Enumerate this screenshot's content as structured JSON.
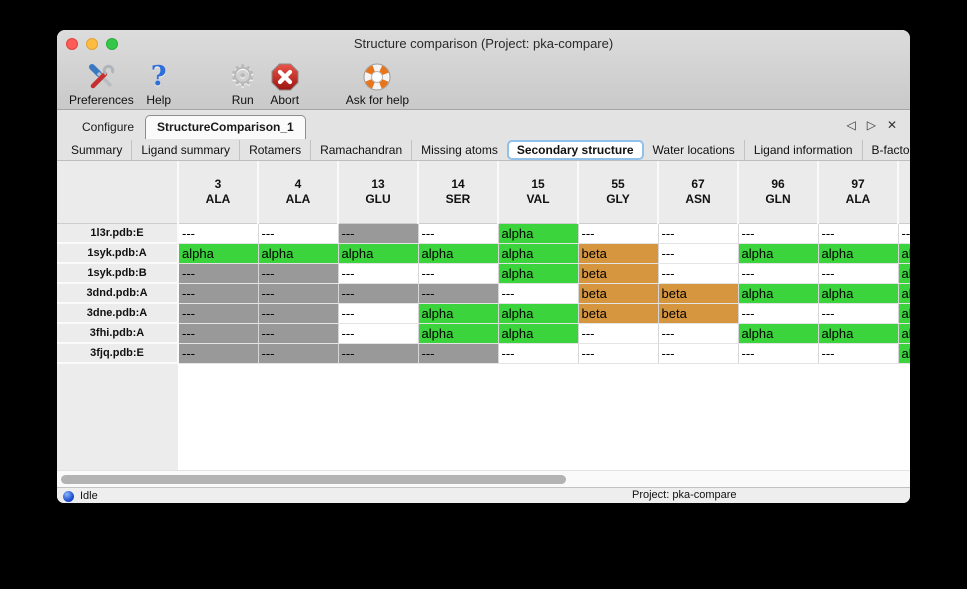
{
  "window": {
    "title": "Structure comparison (Project: pka-compare)"
  },
  "toolbar": {
    "buttons": [
      {
        "label": "Preferences",
        "icon": "tools-icon"
      },
      {
        "label": "Help",
        "icon": "question-mark-icon"
      },
      {
        "label": "Run",
        "icon": "gear-icon"
      },
      {
        "label": "Abort",
        "icon": "stop-x-icon"
      },
      {
        "label": "Ask for help",
        "icon": "lifebuoy-icon"
      }
    ]
  },
  "main_tabs": {
    "tabs": [
      {
        "label": "Configure",
        "selected": false
      },
      {
        "label": "StructureComparison_1",
        "selected": true
      }
    ],
    "nav": {
      "back": "◁",
      "forward": "▷",
      "close": "✕"
    }
  },
  "sub_tabs": {
    "tabs": [
      {
        "label": "Summary",
        "selected": false
      },
      {
        "label": "Ligand summary",
        "selected": false
      },
      {
        "label": "Rotamers",
        "selected": false
      },
      {
        "label": "Ramachandran",
        "selected": false
      },
      {
        "label": "Missing atoms",
        "selected": false
      },
      {
        "label": "Secondary structure",
        "selected": true
      },
      {
        "label": "Water locations",
        "selected": false
      },
      {
        "label": "Ligand information",
        "selected": false
      },
      {
        "label": "B-factors",
        "selected": false
      }
    ],
    "nav": {
      "back": "◁",
      "forward": "▷"
    }
  },
  "colors": {
    "green": "#3cd43c",
    "orange": "#d6963f",
    "gray": "#999999",
    "white": "#ffffff"
  },
  "table": {
    "columns": [
      {
        "number": "3",
        "residue": "ALA"
      },
      {
        "number": "4",
        "residue": "ALA"
      },
      {
        "number": "13",
        "residue": "GLU"
      },
      {
        "number": "14",
        "residue": "SER"
      },
      {
        "number": "15",
        "residue": "VAL"
      },
      {
        "number": "55",
        "residue": "GLY"
      },
      {
        "number": "67",
        "residue": "ASN"
      },
      {
        "number": "96",
        "residue": "GLN"
      },
      {
        "number": "97",
        "residue": "ALA"
      },
      {
        "number": "",
        "residue": ""
      }
    ],
    "rows": [
      {
        "label": "1l3r.pdb:E",
        "cells": [
          {
            "text": "---",
            "bg": "white"
          },
          {
            "text": "---",
            "bg": "white"
          },
          {
            "text": "---",
            "bg": "gray"
          },
          {
            "text": "---",
            "bg": "white"
          },
          {
            "text": "alpha",
            "bg": "green"
          },
          {
            "text": "---",
            "bg": "white"
          },
          {
            "text": "---",
            "bg": "white"
          },
          {
            "text": "---",
            "bg": "white"
          },
          {
            "text": "---",
            "bg": "white"
          },
          {
            "text": "---",
            "bg": "white"
          }
        ]
      },
      {
        "label": "1syk.pdb:A",
        "cells": [
          {
            "text": "alpha",
            "bg": "green"
          },
          {
            "text": "alpha",
            "bg": "green"
          },
          {
            "text": "alpha",
            "bg": "green"
          },
          {
            "text": "alpha",
            "bg": "green"
          },
          {
            "text": "alpha",
            "bg": "green"
          },
          {
            "text": "beta",
            "bg": "orange"
          },
          {
            "text": "---",
            "bg": "white"
          },
          {
            "text": "alpha",
            "bg": "green"
          },
          {
            "text": "alpha",
            "bg": "green"
          },
          {
            "text": "alpha",
            "bg": "green"
          }
        ]
      },
      {
        "label": "1syk.pdb:B",
        "cells": [
          {
            "text": "---",
            "bg": "gray"
          },
          {
            "text": "---",
            "bg": "gray"
          },
          {
            "text": "---",
            "bg": "white"
          },
          {
            "text": "---",
            "bg": "white"
          },
          {
            "text": "alpha",
            "bg": "green"
          },
          {
            "text": "beta",
            "bg": "orange"
          },
          {
            "text": "---",
            "bg": "white"
          },
          {
            "text": "---",
            "bg": "white"
          },
          {
            "text": "---",
            "bg": "white"
          },
          {
            "text": "alpha",
            "bg": "green"
          }
        ]
      },
      {
        "label": "3dnd.pdb:A",
        "cells": [
          {
            "text": "---",
            "bg": "gray"
          },
          {
            "text": "---",
            "bg": "gray"
          },
          {
            "text": "---",
            "bg": "gray"
          },
          {
            "text": "---",
            "bg": "gray"
          },
          {
            "text": "---",
            "bg": "white"
          },
          {
            "text": "beta",
            "bg": "orange"
          },
          {
            "text": "beta",
            "bg": "orange"
          },
          {
            "text": "alpha",
            "bg": "green"
          },
          {
            "text": "alpha",
            "bg": "green"
          },
          {
            "text": "alpha",
            "bg": "green"
          }
        ]
      },
      {
        "label": "3dne.pdb:A",
        "cells": [
          {
            "text": "---",
            "bg": "gray"
          },
          {
            "text": "---",
            "bg": "gray"
          },
          {
            "text": "---",
            "bg": "white"
          },
          {
            "text": "alpha",
            "bg": "green"
          },
          {
            "text": "alpha",
            "bg": "green"
          },
          {
            "text": "beta",
            "bg": "orange"
          },
          {
            "text": "beta",
            "bg": "orange"
          },
          {
            "text": "---",
            "bg": "white"
          },
          {
            "text": "---",
            "bg": "white"
          },
          {
            "text": "alpha",
            "bg": "green"
          }
        ]
      },
      {
        "label": "3fhi.pdb:A",
        "cells": [
          {
            "text": "---",
            "bg": "gray"
          },
          {
            "text": "---",
            "bg": "gray"
          },
          {
            "text": "---",
            "bg": "white"
          },
          {
            "text": "alpha",
            "bg": "green"
          },
          {
            "text": "alpha",
            "bg": "green"
          },
          {
            "text": "---",
            "bg": "white"
          },
          {
            "text": "---",
            "bg": "white"
          },
          {
            "text": "alpha",
            "bg": "green"
          },
          {
            "text": "alpha",
            "bg": "green"
          },
          {
            "text": "alpha",
            "bg": "green"
          }
        ]
      },
      {
        "label": "3fjq.pdb:E",
        "cells": [
          {
            "text": "---",
            "bg": "gray"
          },
          {
            "text": "---",
            "bg": "gray"
          },
          {
            "text": "---",
            "bg": "gray"
          },
          {
            "text": "---",
            "bg": "gray"
          },
          {
            "text": "---",
            "bg": "white"
          },
          {
            "text": "---",
            "bg": "white"
          },
          {
            "text": "---",
            "bg": "white"
          },
          {
            "text": "---",
            "bg": "white"
          },
          {
            "text": "---",
            "bg": "white"
          },
          {
            "text": "alpha",
            "bg": "green"
          }
        ]
      }
    ]
  },
  "status_bar": {
    "status": "Idle",
    "project": "Project: pka-compare"
  }
}
